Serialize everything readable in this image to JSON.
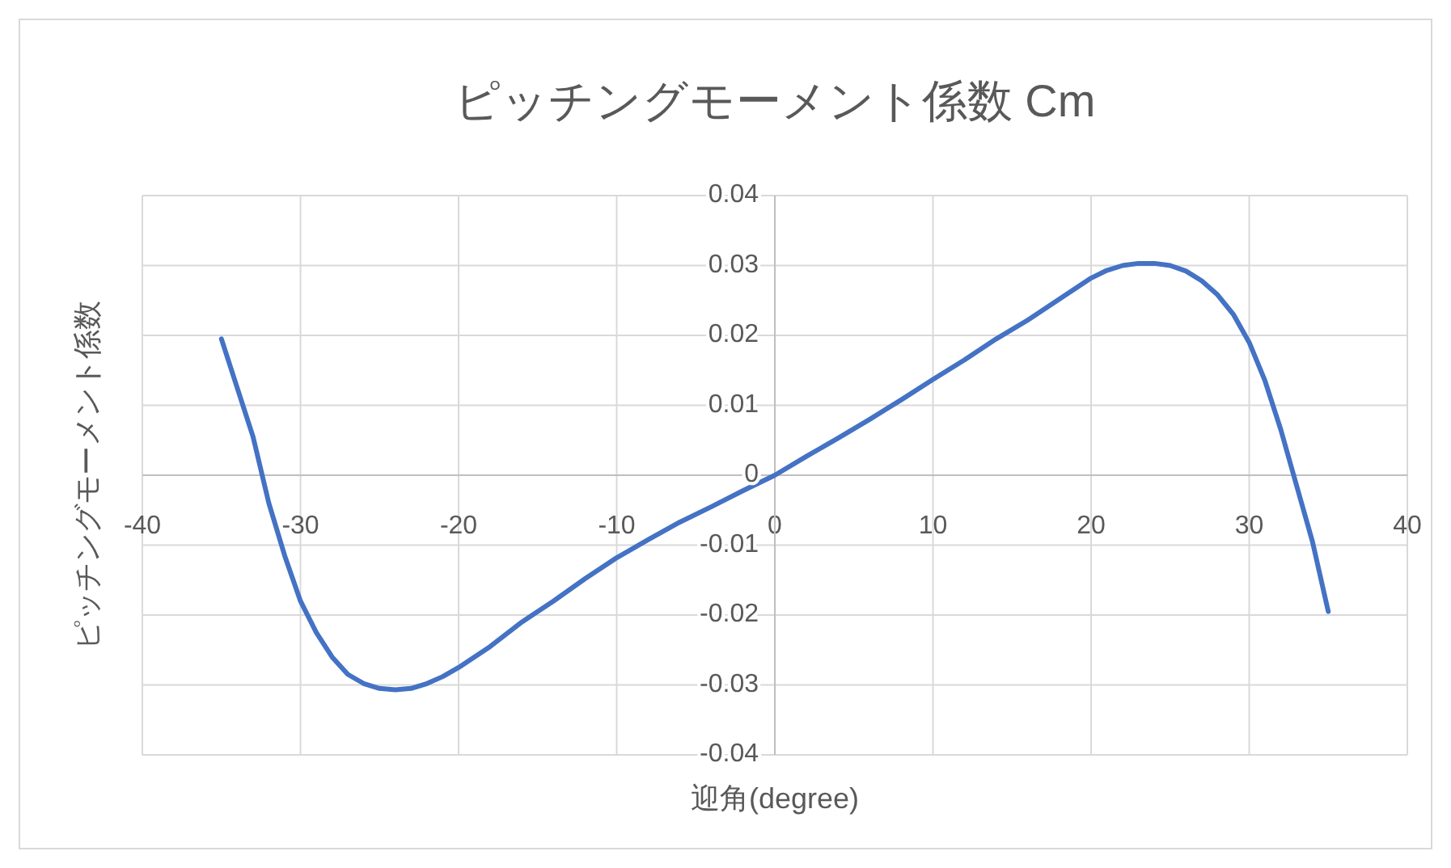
{
  "chart_data": {
    "type": "line",
    "title": "ピッチングモーメント係数 Cm",
    "xlabel": "迎角(degree)",
    "ylabel": "ピッチングモーメント係数",
    "x": [
      -35,
      -34,
      -33,
      -32,
      -31,
      -30,
      -29,
      -28,
      -27,
      -26,
      -25,
      -24,
      -23,
      -22,
      -21,
      -20,
      -18,
      -16,
      -14,
      -12,
      -10,
      -8,
      -6,
      -4,
      -2,
      0,
      2,
      4,
      6,
      8,
      10,
      12,
      14,
      16,
      18,
      20,
      21,
      22,
      23,
      24,
      25,
      26,
      27,
      28,
      29,
      30,
      31,
      32,
      33,
      34,
      35
    ],
    "series": [
      {
        "color": "#4472c4",
        "values": [
          0.0195,
          0.0125,
          0.0055,
          -0.004,
          -0.0115,
          -0.018,
          -0.0225,
          -0.026,
          -0.0285,
          -0.0298,
          -0.0305,
          -0.0307,
          -0.0305,
          -0.0298,
          -0.0288,
          -0.0275,
          -0.0245,
          -0.021,
          -0.018,
          -0.0148,
          -0.0118,
          -0.0092,
          -0.0067,
          -0.0045,
          -0.0022,
          0,
          0.0027,
          0.0053,
          0.008,
          0.0108,
          0.0137,
          0.0165,
          0.0195,
          0.0222,
          0.0252,
          0.0282,
          0.0293,
          0.03,
          0.0303,
          0.0303,
          0.03,
          0.0292,
          0.0278,
          0.0258,
          0.023,
          0.019,
          0.0135,
          0.0065,
          -0.0015,
          -0.0095,
          -0.0195
        ]
      }
    ],
    "xlim": [
      -40,
      40
    ],
    "ylim": [
      -0.04,
      0.04
    ],
    "xticks": [
      -40,
      -30,
      -20,
      -10,
      0,
      10,
      20,
      30,
      40
    ],
    "yticks": [
      -0.04,
      -0.03,
      -0.02,
      -0.01,
      0,
      0.01,
      0.02,
      0.03,
      0.04
    ],
    "grid": true
  }
}
